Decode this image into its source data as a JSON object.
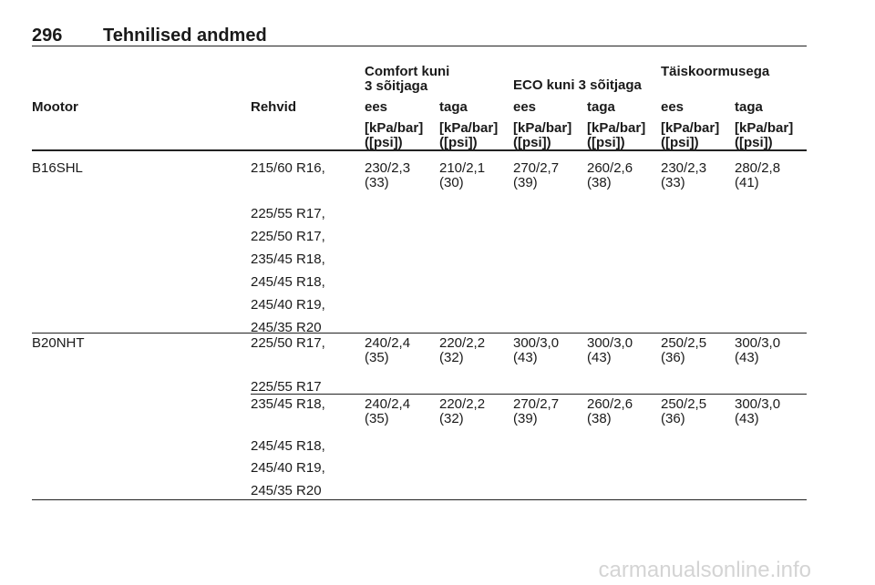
{
  "header": {
    "page_number": "296",
    "title": "Tehnilised andmed"
  },
  "table": {
    "group_headers": [
      "Comfort kuni\n3 sõitjaga",
      "ECO kuni 3 sõitjaga",
      "Täiskoormusega"
    ],
    "columns": [
      "Mootor",
      "Rehvid",
      "ees",
      "taga",
      "ees",
      "taga",
      "ees",
      "taga"
    ],
    "units": [
      "[kPa/bar]\n([psi])",
      "[kPa/bar]\n([psi])",
      "[kPa/bar]\n([psi])",
      "[kPa/bar]\n([psi])",
      "[kPa/bar]\n([psi])",
      "[kPa/bar]\n([psi])"
    ],
    "rows": [
      {
        "engine": "B16SHL",
        "groups": [
          {
            "tires": [
              "215/60 R16,",
              "225/55 R17,",
              "225/50 R17,",
              "235/45 R18,",
              "245/45 R18,",
              "245/40 R19,",
              "245/35 R20"
            ],
            "values": [
              "230/2,3\n(33)",
              "210/2,1\n(30)",
              "270/2,7\n(39)",
              "260/2,6\n(38)",
              "230/2,3\n(33)",
              "280/2,8\n(41)"
            ]
          }
        ]
      },
      {
        "engine": "B20NHT",
        "groups": [
          {
            "tires": [
              "225/50 R17,",
              "225/55 R17"
            ],
            "values": [
              "240/2,4\n(35)",
              "220/2,2\n(32)",
              "300/3,0\n(43)",
              "300/3,0\n(43)",
              "250/2,5\n(36)",
              "300/3,0\n(43)"
            ]
          },
          {
            "tires": [
              "235/45 R18,",
              "245/45 R18,",
              "245/40 R19,",
              "245/35 R20"
            ],
            "values": [
              "240/2,4\n(35)",
              "220/2,2\n(32)",
              "270/2,7\n(39)",
              "260/2,6\n(38)",
              "250/2,5\n(36)",
              "300/3,0\n(43)"
            ]
          }
        ]
      }
    ]
  },
  "watermark": "carmanualsonline.info"
}
